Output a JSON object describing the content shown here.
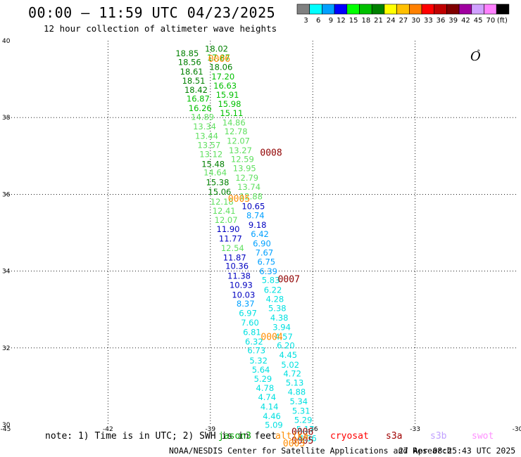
{
  "header": {
    "title": "00:00 – 11:59 UTC 04/23/2025",
    "subtitle": "12 hour collection of altimeter wave heights"
  },
  "legend": {
    "unit": "(ft)",
    "bins": [
      {
        "label": "3",
        "color": "#808080"
      },
      {
        "label": "6",
        "color": "#00ffff"
      },
      {
        "label": "9",
        "color": "#00a0ff"
      },
      {
        "label": "12",
        "color": "#0000ff"
      },
      {
        "label": "15",
        "color": "#00ff00"
      },
      {
        "label": "18",
        "color": "#00c000"
      },
      {
        "label": "21",
        "color": "#008000"
      },
      {
        "label": "24",
        "color": "#ffff00"
      },
      {
        "label": "27",
        "color": "#ffc000"
      },
      {
        "label": "30",
        "color": "#ff8000"
      },
      {
        "label": "33",
        "color": "#ff0000"
      },
      {
        "label": "36",
        "color": "#c00000"
      },
      {
        "label": "39",
        "color": "#800000"
      },
      {
        "label": "42",
        "color": "#a000a0"
      },
      {
        "label": "45",
        "color": "#d0a0ff"
      },
      {
        "label": "70",
        "color": "#ff80ff"
      },
      {
        "label": "",
        "color": "#000000"
      }
    ]
  },
  "map_symbol": {
    "text": "O",
    "dot": "°"
  },
  "footer": {
    "note": "note: 1) Time is in UTC; 2) SWH is in feet",
    "missions": [
      {
        "name": "jason3",
        "color": "#00a000"
      },
      {
        "name": "altika",
        "color": "#ff8c00"
      },
      {
        "name": "cryosat",
        "color": "#ff0000"
      },
      {
        "name": "s3a",
        "color": "#a00000"
      },
      {
        "name": "s3b",
        "color": "#c0a0ff"
      },
      {
        "name": "swot",
        "color": "#ff90ff"
      }
    ],
    "credit": "NOAA/NESDIS Center for Satellite Applications and Research",
    "timestamp": "27 Apr 08:25:43 UTC 2025"
  },
  "chart_data": {
    "type": "scatter",
    "title": "00:00 – 11:59 UTC 04/23/2025",
    "subtitle": "12 hour collection of altimeter wave heights",
    "xlim": [
      -45,
      -30
    ],
    "ylim": [
      30,
      40
    ],
    "x_ticks": [
      "-45",
      "-42",
      "-39",
      "-36",
      "-33",
      "-30"
    ],
    "y_ticks": [
      "30",
      "32",
      "34",
      "36",
      "38",
      "40"
    ],
    "grid": true,
    "colors": {
      "c6": "#00e0e0",
      "c9": "#00a0ff",
      "c12": "#0000c0",
      "c15": "#60e060",
      "c18": "#00c000",
      "c21": "#008000",
      "altika": "#ff8c00",
      "s3a": "#900000"
    },
    "series": [
      {
        "name": "swh_left",
        "points": [
          {
            "x": -39.68,
            "y": 39.67,
            "v": "18.85",
            "c": "c21"
          },
          {
            "x": -39.61,
            "y": 39.44,
            "v": "18.56",
            "c": "c21"
          },
          {
            "x": -39.55,
            "y": 39.19,
            "v": "18.61",
            "c": "c21"
          },
          {
            "x": -39.49,
            "y": 38.96,
            "v": "18.51",
            "c": "c21"
          },
          {
            "x": -39.42,
            "y": 38.72,
            "v": "18.42",
            "c": "c21"
          },
          {
            "x": -39.36,
            "y": 38.49,
            "v": "16.87",
            "c": "c18"
          },
          {
            "x": -39.3,
            "y": 38.24,
            "v": "16.26",
            "c": "c18"
          },
          {
            "x": -39.23,
            "y": 38.01,
            "v": "14.89",
            "c": "c15"
          },
          {
            "x": -39.17,
            "y": 37.77,
            "v": "13.34",
            "c": "c15"
          },
          {
            "x": -39.11,
            "y": 37.52,
            "v": "13.44",
            "c": "c15"
          },
          {
            "x": -39.04,
            "y": 37.28,
            "v": "13.57",
            "c": "c15"
          },
          {
            "x": -38.98,
            "y": 37.04,
            "v": "13.12",
            "c": "c15"
          },
          {
            "x": -38.92,
            "y": 36.79,
            "v": "15.48",
            "c": "c21"
          },
          {
            "x": -38.86,
            "y": 36.57,
            "v": "14.64",
            "c": "c15"
          },
          {
            "x": -38.79,
            "y": 36.31,
            "v": "15.38",
            "c": "c21"
          },
          {
            "x": -38.73,
            "y": 36.06,
            "v": "15.06",
            "c": "c21"
          },
          {
            "x": -38.66,
            "y": 35.81,
            "v": "12.18",
            "c": "c15"
          },
          {
            "x": -38.6,
            "y": 35.57,
            "v": "12.41",
            "c": "c15"
          },
          {
            "x": -38.54,
            "y": 35.33,
            "v": "12.07",
            "c": "c15"
          },
          {
            "x": -38.48,
            "y": 35.09,
            "v": "11.90",
            "c": "c12"
          },
          {
            "x": -38.41,
            "y": 34.84,
            "v": "11.77",
            "c": "c12"
          },
          {
            "x": -38.35,
            "y": 34.6,
            "v": "12.54",
            "c": "c15"
          },
          {
            "x": -38.29,
            "y": 34.35,
            "v": "11.87",
            "c": "c12"
          },
          {
            "x": -38.22,
            "y": 34.13,
            "v": "10.36",
            "c": "c12"
          },
          {
            "x": -38.16,
            "y": 33.87,
            "v": "11.38",
            "c": "c12"
          },
          {
            "x": -38.1,
            "y": 33.64,
            "v": "10.93",
            "c": "c12"
          },
          {
            "x": -38.03,
            "y": 33.38,
            "v": "10.03",
            "c": "c12"
          },
          {
            "x": -37.97,
            "y": 33.15,
            "v": "8.37",
            "c": "c9"
          },
          {
            "x": -37.9,
            "y": 32.9,
            "v": "6.97",
            "c": "c6"
          },
          {
            "x": -37.84,
            "y": 32.66,
            "v": "7.60",
            "c": "c6"
          },
          {
            "x": -37.78,
            "y": 32.41,
            "v": "6.81",
            "c": "c6"
          },
          {
            "x": -37.72,
            "y": 32.16,
            "v": "6.32",
            "c": "c6"
          },
          {
            "x": -37.65,
            "y": 31.93,
            "v": "6.73",
            "c": "c6"
          },
          {
            "x": -37.59,
            "y": 31.67,
            "v": "5.32",
            "c": "c6"
          },
          {
            "x": -37.52,
            "y": 31.43,
            "v": "5.64",
            "c": "c6"
          },
          {
            "x": -37.46,
            "y": 31.19,
            "v": "5.29",
            "c": "c6"
          },
          {
            "x": -37.4,
            "y": 30.95,
            "v": "4.78",
            "c": "c6"
          },
          {
            "x": -37.34,
            "y": 30.71,
            "v": "4.74",
            "c": "c6"
          },
          {
            "x": -37.27,
            "y": 30.47,
            "v": "4.14",
            "c": "c6"
          },
          {
            "x": -37.2,
            "y": 30.22,
            "v": "4.46",
            "c": "c6"
          },
          {
            "x": -37.14,
            "y": 29.99,
            "v": "5.09",
            "c": "c6"
          }
        ]
      },
      {
        "name": "swh_right",
        "points": [
          {
            "x": -38.82,
            "y": 39.79,
            "v": "18.02",
            "c": "c21"
          },
          {
            "x": -38.76,
            "y": 39.56,
            "v": "17.87",
            "c": "c18"
          },
          {
            "x": -38.69,
            "y": 39.31,
            "v": "18.06",
            "c": "c21"
          },
          {
            "x": -38.63,
            "y": 39.07,
            "v": "17.20",
            "c": "c18"
          },
          {
            "x": -38.57,
            "y": 38.83,
            "v": "16.63",
            "c": "c18"
          },
          {
            "x": -38.5,
            "y": 38.59,
            "v": "15.91",
            "c": "c18"
          },
          {
            "x": -38.44,
            "y": 38.35,
            "v": "15.98",
            "c": "c18"
          },
          {
            "x": -38.38,
            "y": 38.11,
            "v": "15.11",
            "c": "c18"
          },
          {
            "x": -38.31,
            "y": 37.87,
            "v": "14.86",
            "c": "c15"
          },
          {
            "x": -38.25,
            "y": 37.64,
            "v": "12.78",
            "c": "c15"
          },
          {
            "x": -38.18,
            "y": 37.39,
            "v": "12.07",
            "c": "c15"
          },
          {
            "x": -38.12,
            "y": 37.14,
            "v": "13.27",
            "c": "c15"
          },
          {
            "x": -38.06,
            "y": 36.91,
            "v": "12.59",
            "c": "c15"
          },
          {
            "x": -38.0,
            "y": 36.68,
            "v": "13.95",
            "c": "c15"
          },
          {
            "x": -37.93,
            "y": 36.43,
            "v": "12.79",
            "c": "c15"
          },
          {
            "x": -37.87,
            "y": 36.19,
            "v": "13.74",
            "c": "c15"
          },
          {
            "x": -37.81,
            "y": 35.94,
            "v": "12.88",
            "c": "c15"
          },
          {
            "x": -37.74,
            "y": 35.69,
            "v": "10.65",
            "c": "c12"
          },
          {
            "x": -37.68,
            "y": 35.45,
            "v": "8.74",
            "c": "c9"
          },
          {
            "x": -37.62,
            "y": 35.2,
            "v": "9.18",
            "c": "c12"
          },
          {
            "x": -37.55,
            "y": 34.96,
            "v": "6.42",
            "c": "c9"
          },
          {
            "x": -37.49,
            "y": 34.72,
            "v": "6.90",
            "c": "c9"
          },
          {
            "x": -37.42,
            "y": 34.48,
            "v": "7.67",
            "c": "c9"
          },
          {
            "x": -37.36,
            "y": 34.24,
            "v": "6.75",
            "c": "c9"
          },
          {
            "x": -37.3,
            "y": 33.99,
            "v": "6.39",
            "c": "c9"
          },
          {
            "x": -37.23,
            "y": 33.76,
            "v": "5.83",
            "c": "c6"
          },
          {
            "x": -37.17,
            "y": 33.51,
            "v": "6.22",
            "c": "c6"
          },
          {
            "x": -37.11,
            "y": 33.27,
            "v": "4.28",
            "c": "c6"
          },
          {
            "x": -37.04,
            "y": 33.03,
            "v": "5.38",
            "c": "c6"
          },
          {
            "x": -36.98,
            "y": 32.78,
            "v": "4.38",
            "c": "c6"
          },
          {
            "x": -36.91,
            "y": 32.54,
            "v": "3.94",
            "c": "c6"
          },
          {
            "x": -36.85,
            "y": 32.29,
            "v": "4.57",
            "c": "c6"
          },
          {
            "x": -36.79,
            "y": 32.06,
            "v": "6.20",
            "c": "c6"
          },
          {
            "x": -36.72,
            "y": 31.81,
            "v": "4.45",
            "c": "c6"
          },
          {
            "x": -36.66,
            "y": 31.56,
            "v": "5.02",
            "c": "c6"
          },
          {
            "x": -36.6,
            "y": 31.33,
            "v": "4.72",
            "c": "c6"
          },
          {
            "x": -36.53,
            "y": 31.09,
            "v": "5.13",
            "c": "c6"
          },
          {
            "x": -36.47,
            "y": 30.85,
            "v": "4.88",
            "c": "c6"
          },
          {
            "x": -36.41,
            "y": 30.6,
            "v": "5.34",
            "c": "c6"
          },
          {
            "x": -36.34,
            "y": 30.36,
            "v": "5.31",
            "c": "c6"
          },
          {
            "x": -36.28,
            "y": 30.12,
            "v": "5.29",
            "c": "c6"
          },
          {
            "x": -36.22,
            "y": 29.88,
            "v": "5.17",
            "c": "c6"
          },
          {
            "x": -36.15,
            "y": 29.64,
            "v": "4.36",
            "c": "c6"
          }
        ]
      }
    ],
    "time_labels": [
      {
        "x": -38.74,
        "y": 39.54,
        "v": "0006",
        "c": "altika"
      },
      {
        "x": -37.22,
        "y": 37.1,
        "v": "0008",
        "c": "s3a"
      },
      {
        "x": -38.16,
        "y": 35.9,
        "v": "0005",
        "c": "altika"
      },
      {
        "x": -36.7,
        "y": 33.8,
        "v": "0007",
        "c": "s3a"
      },
      {
        "x": -37.2,
        "y": 32.3,
        "v": "0004",
        "c": "altika"
      },
      {
        "x": -36.3,
        "y": 29.83,
        "v": "0006",
        "c": "s3a"
      },
      {
        "x": -36.3,
        "y": 29.6,
        "v": "0005",
        "c": "s3a"
      },
      {
        "x": -36.55,
        "y": 29.52,
        "v": "0003",
        "c": "altika"
      }
    ]
  }
}
